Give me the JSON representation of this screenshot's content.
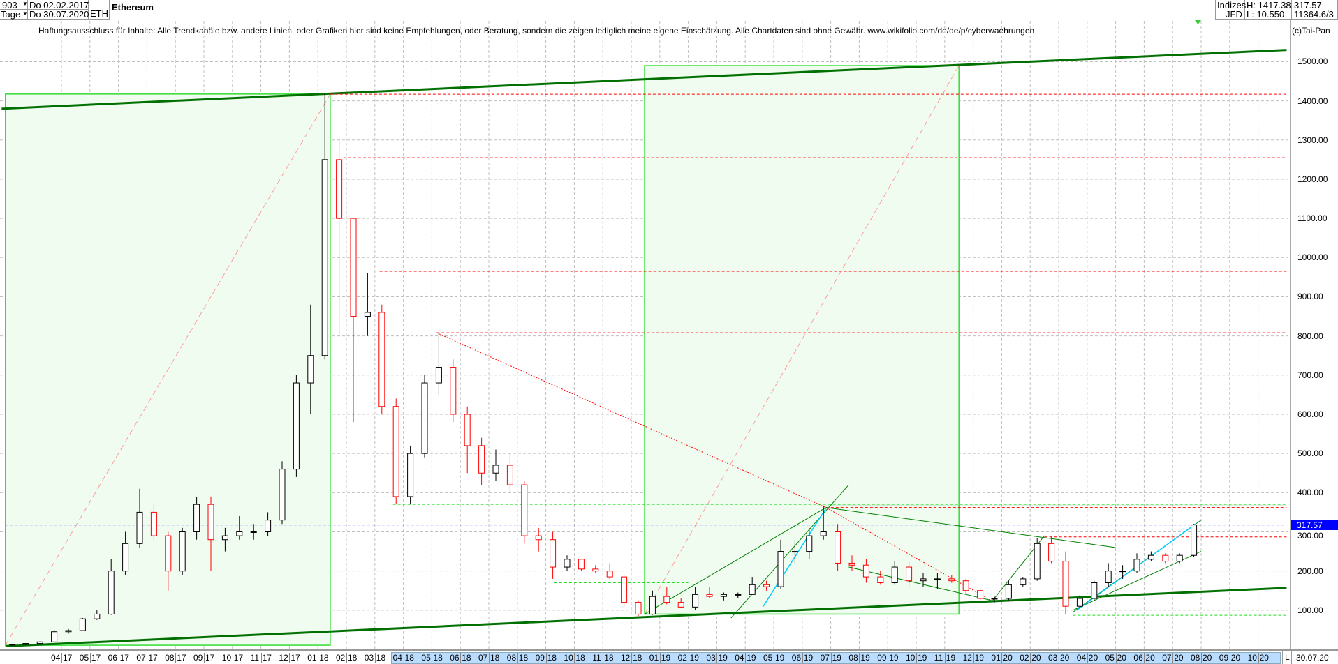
{
  "header": {
    "count_select": "903",
    "period_select": "Tage",
    "date_from": "Do 02.02.2017",
    "date_to": "Do 30.07.2020",
    "symbol": "ETH",
    "title": "Ethereum",
    "exchange_top": "Indizes",
    "exchange_bottom": "JFD",
    "high": "H: 1417.38",
    "low": "L: 10.550",
    "last": "317.57",
    "volume": "11364.6/3",
    "dropdown_icon": "triangle-down"
  },
  "disclaimer": "Haftungsausschluss für Inhalte: Alle Trendkanäle bzw. andere Linien, oder Grafiken hier sind keine Empfehlungen, oder Beratung, sondern die zeigen lediglich meine eigene Einschätzung. Alle Chartdaten sind ohne Gewähr.  www.wikifolio.com/de/de/p/cyberwaehrungen",
  "copyright": "(c)Tai-Pan",
  "footer": {
    "scale_mode": "L",
    "last_date": "30.07.20"
  },
  "colors": {
    "up": "#000000",
    "down": "#ff0000",
    "trend": "#008000",
    "zone_fill": "#f0fcf0",
    "zone_border": "#33dd33",
    "current_price": "#0000ff",
    "axis_highlight": "#b9dcff"
  },
  "chart_data": {
    "type": "candlestick",
    "ylim": [
      0,
      1560
    ],
    "yticks": [
      "100.00",
      "200.00",
      "300.00",
      "400.00",
      "500.00",
      "600.00",
      "700.00",
      "800.00",
      "900.00",
      "1000.00",
      "1100.00",
      "1200.00",
      "1300.00",
      "1400.00",
      "1500.00"
    ],
    "ytick_values": [
      100,
      200,
      300,
      400,
      500,
      600,
      700,
      800,
      900,
      1000,
      1100,
      1200,
      1300,
      1400,
      1500
    ],
    "xticks": [
      [
        "04",
        "17"
      ],
      [
        "05",
        "17"
      ],
      [
        "06",
        "17"
      ],
      [
        "07",
        "17"
      ],
      [
        "08",
        "17"
      ],
      [
        "09",
        "17"
      ],
      [
        "10",
        "17"
      ],
      [
        "11",
        "17"
      ],
      [
        "12",
        "17"
      ],
      [
        "01",
        "18"
      ],
      [
        "02",
        "18"
      ],
      [
        "03",
        "18"
      ],
      [
        "04",
        "18"
      ],
      [
        "05",
        "18"
      ],
      [
        "06",
        "18"
      ],
      [
        "07",
        "18"
      ],
      [
        "08",
        "18"
      ],
      [
        "09",
        "18"
      ],
      [
        "10",
        "18"
      ],
      [
        "11",
        "18"
      ],
      [
        "12",
        "18"
      ],
      [
        "01",
        "19"
      ],
      [
        "02",
        "19"
      ],
      [
        "03",
        "19"
      ],
      [
        "04",
        "19"
      ],
      [
        "05",
        "19"
      ],
      [
        "06",
        "19"
      ],
      [
        "07",
        "19"
      ],
      [
        "08",
        "19"
      ],
      [
        "09",
        "19"
      ],
      [
        "10",
        "19"
      ],
      [
        "11",
        "19"
      ],
      [
        "12",
        "19"
      ],
      [
        "01",
        "20"
      ],
      [
        "02",
        "20"
      ],
      [
        "03",
        "20"
      ],
      [
        "04",
        "20"
      ],
      [
        "05",
        "20"
      ],
      [
        "06",
        "20"
      ],
      [
        "07",
        "20"
      ],
      [
        "08",
        "20"
      ],
      [
        "09",
        "20"
      ],
      [
        "10",
        "20"
      ]
    ],
    "xtick_months": [
      "2017-04",
      "2017-05",
      "2017-06",
      "2017-07",
      "2017-08",
      "2017-09",
      "2017-10",
      "2017-11",
      "2017-12",
      "2018-01",
      "2018-02",
      "2018-03",
      "2018-04",
      "2018-05",
      "2018-06",
      "2018-07",
      "2018-08",
      "2018-09",
      "2018-10",
      "2018-11",
      "2018-12",
      "2019-01",
      "2019-02",
      "2019-03",
      "2019-04",
      "2019-05",
      "2019-06",
      "2019-07",
      "2019-08",
      "2019-09",
      "2019-10",
      "2019-11",
      "2019-12",
      "2020-01",
      "2020-02",
      "2020-03",
      "2020-04",
      "2020-05",
      "2020-06",
      "2020-07",
      "2020-08",
      "2020-09",
      "2020-10"
    ],
    "highlight_range": [
      "2018-04",
      "2020-10"
    ],
    "grid": true,
    "current_price": 317.57,
    "ohlc_fields": [
      "date",
      "open",
      "high",
      "low",
      "close"
    ],
    "candles": [
      [
        "2017-02-02",
        11,
        13,
        10.55,
        12.5
      ],
      [
        "2017-02-16",
        12.5,
        16,
        12,
        15
      ],
      [
        "2017-03-01",
        15,
        20,
        15,
        19
      ],
      [
        "2017-03-16",
        19,
        50,
        19,
        45
      ],
      [
        "2017-04-01",
        45,
        52,
        40,
        48
      ],
      [
        "2017-04-16",
        48,
        80,
        47,
        78
      ],
      [
        "2017-05-01",
        78,
        100,
        75,
        90
      ],
      [
        "2017-05-16",
        90,
        230,
        88,
        200
      ],
      [
        "2017-06-01",
        200,
        300,
        190,
        270
      ],
      [
        "2017-06-16",
        270,
        410,
        260,
        350
      ],
      [
        "2017-07-01",
        350,
        370,
        280,
        290
      ],
      [
        "2017-07-16",
        290,
        300,
        150,
        200
      ],
      [
        "2017-08-01",
        200,
        310,
        190,
        300
      ],
      [
        "2017-08-16",
        300,
        390,
        280,
        370
      ],
      [
        "2017-09-01",
        370,
        390,
        200,
        280
      ],
      [
        "2017-09-16",
        280,
        310,
        250,
        290
      ],
      [
        "2017-10-01",
        290,
        340,
        280,
        300
      ],
      [
        "2017-10-16",
        300,
        320,
        280,
        300
      ],
      [
        "2017-11-01",
        300,
        350,
        290,
        330
      ],
      [
        "2017-11-16",
        330,
        480,
        320,
        460
      ],
      [
        "2017-12-01",
        460,
        700,
        440,
        680
      ],
      [
        "2017-12-16",
        680,
        880,
        600,
        750
      ],
      [
        "2018-01-01",
        750,
        1417.38,
        740,
        1250
      ],
      [
        "2018-01-16",
        1250,
        1300,
        800,
        1100
      ],
      [
        "2018-02-01",
        1100,
        1100,
        580,
        850
      ],
      [
        "2018-02-16",
        850,
        960,
        800,
        860
      ],
      [
        "2018-03-01",
        860,
        880,
        600,
        620
      ],
      [
        "2018-03-16",
        620,
        640,
        370,
        390
      ],
      [
        "2018-04-01",
        390,
        520,
        370,
        500
      ],
      [
        "2018-04-16",
        500,
        700,
        490,
        680
      ],
      [
        "2018-05-01",
        680,
        810,
        650,
        720
      ],
      [
        "2018-05-16",
        720,
        740,
        580,
        600
      ],
      [
        "2018-06-01",
        600,
        620,
        450,
        520
      ],
      [
        "2018-06-16",
        520,
        540,
        420,
        450
      ],
      [
        "2018-07-01",
        450,
        510,
        430,
        470
      ],
      [
        "2018-07-16",
        470,
        500,
        400,
        420
      ],
      [
        "2018-08-01",
        420,
        430,
        270,
        290
      ],
      [
        "2018-08-16",
        290,
        310,
        250,
        280
      ],
      [
        "2018-09-01",
        280,
        300,
        180,
        210
      ],
      [
        "2018-09-16",
        210,
        240,
        200,
        230
      ],
      [
        "2018-10-01",
        230,
        230,
        200,
        205
      ],
      [
        "2018-10-16",
        205,
        215,
        195,
        200
      ],
      [
        "2018-11-01",
        200,
        220,
        180,
        185
      ],
      [
        "2018-11-16",
        185,
        190,
        110,
        120
      ],
      [
        "2018-12-01",
        120,
        125,
        85,
        90
      ],
      [
        "2018-12-16",
        90,
        150,
        88,
        135
      ],
      [
        "2019-01-01",
        135,
        160,
        115,
        120
      ],
      [
        "2019-01-16",
        120,
        130,
        105,
        108
      ],
      [
        "2019-02-01",
        108,
        160,
        100,
        140
      ],
      [
        "2019-02-16",
        140,
        160,
        130,
        135
      ],
      [
        "2019-03-01",
        135,
        145,
        125,
        140
      ],
      [
        "2019-03-16",
        140,
        145,
        130,
        140
      ],
      [
        "2019-04-01",
        140,
        185,
        140,
        165
      ],
      [
        "2019-04-16",
        165,
        175,
        150,
        160
      ],
      [
        "2019-05-01",
        160,
        280,
        155,
        250
      ],
      [
        "2019-05-16",
        250,
        280,
        220,
        250
      ],
      [
        "2019-06-01",
        250,
        310,
        230,
        290
      ],
      [
        "2019-06-16",
        290,
        365,
        280,
        300
      ],
      [
        "2019-07-01",
        300,
        320,
        200,
        220
      ],
      [
        "2019-07-16",
        220,
        240,
        200,
        215
      ],
      [
        "2019-08-01",
        215,
        230,
        170,
        185
      ],
      [
        "2019-08-16",
        185,
        200,
        165,
        170
      ],
      [
        "2019-09-01",
        170,
        225,
        165,
        210
      ],
      [
        "2019-09-16",
        210,
        225,
        160,
        175
      ],
      [
        "2019-10-01",
        175,
        195,
        160,
        180
      ],
      [
        "2019-10-16",
        180,
        195,
        155,
        180
      ],
      [
        "2019-11-01",
        180,
        190,
        170,
        175
      ],
      [
        "2019-11-16",
        175,
        180,
        140,
        150
      ],
      [
        "2019-12-01",
        150,
        155,
        125,
        130
      ],
      [
        "2019-12-16",
        130,
        135,
        120,
        130
      ],
      [
        "2020-01-01",
        130,
        175,
        125,
        165
      ],
      [
        "2020-01-16",
        165,
        185,
        160,
        180
      ],
      [
        "2020-02-01",
        180,
        285,
        175,
        270
      ],
      [
        "2020-02-16",
        270,
        290,
        220,
        225
      ],
      [
        "2020-03-01",
        225,
        250,
        90,
        110
      ],
      [
        "2020-03-16",
        110,
        140,
        100,
        130
      ],
      [
        "2020-04-01",
        130,
        175,
        125,
        170
      ],
      [
        "2020-04-16",
        170,
        220,
        160,
        200
      ],
      [
        "2020-05-01",
        200,
        215,
        180,
        200
      ],
      [
        "2020-05-16",
        200,
        245,
        195,
        230
      ],
      [
        "2020-06-01",
        230,
        250,
        225,
        240
      ],
      [
        "2020-06-16",
        240,
        245,
        220,
        225
      ],
      [
        "2020-07-01",
        225,
        245,
        220,
        240
      ],
      [
        "2020-07-16",
        240,
        320,
        235,
        317.57
      ]
    ],
    "zones": [
      {
        "from": "2017-02-02",
        "to": "2018-01-14",
        "low": 10.55,
        "high": 1417.38
      },
      {
        "from": "2018-12-15",
        "to": "2019-11-16",
        "low": 90,
        "high": 1490
      }
    ],
    "lines": [
      {
        "style": "trend-thick",
        "from": [
          "2017-01-28",
          1380
        ],
        "to": [
          "2020-10-31",
          1530
        ]
      },
      {
        "style": "trend-thick",
        "from": [
          "2017-02-02",
          8
        ],
        "to": [
          "2020-10-31",
          157
        ]
      },
      {
        "style": "red-dash",
        "from": [
          "2018-01-14",
          1417
        ],
        "to": [
          "2020-10-31",
          1417
        ]
      },
      {
        "style": "red-dash",
        "from": [
          "2018-01-28",
          1255
        ],
        "to": [
          "2020-10-31",
          1255
        ]
      },
      {
        "style": "red-dash",
        "from": [
          "2018-03-06",
          965
        ],
        "to": [
          "2020-10-31",
          965
        ]
      },
      {
        "style": "red-dash",
        "from": [
          "2018-05-06",
          808
        ],
        "to": [
          "2020-10-31",
          808
        ]
      },
      {
        "style": "red-dash",
        "from": [
          "2019-06-26",
          362
        ],
        "to": [
          "2020-10-31",
          362
        ]
      },
      {
        "style": "red-dash",
        "from": [
          "2020-02-16",
          287
        ],
        "to": [
          "2020-10-31",
          287
        ]
      },
      {
        "style": "red-dot",
        "from": [
          "2018-05-06",
          808
        ],
        "to": [
          "2019-06-26",
          362
        ]
      },
      {
        "style": "red-dot",
        "from": [
          "2019-06-26",
          362
        ],
        "to": [
          "2019-12-20",
          125
        ]
      },
      {
        "style": "pink-dash",
        "from": [
          "2017-02-02",
          10.55
        ],
        "to": [
          "2018-01-14",
          1417
        ]
      },
      {
        "style": "pink-dash",
        "from": [
          "2018-12-15",
          90
        ],
        "to": [
          "2019-11-16",
          1490
        ]
      },
      {
        "style": "green-dash",
        "from": [
          "2018-03-20",
          370
        ],
        "to": [
          "2020-10-31",
          370
        ]
      },
      {
        "style": "green-dash",
        "from": [
          "2018-09-10",
          170
        ],
        "to": [
          "2019-02-01",
          170
        ]
      },
      {
        "style": "green-dash",
        "from": [
          "2020-03-16",
          87
        ],
        "to": [
          "2020-10-31",
          87
        ]
      },
      {
        "style": "blue-dash",
        "from": [
          "2017-02-02",
          317.57
        ],
        "to": [
          "2020-10-31",
          317.57
        ]
      },
      {
        "style": "trend",
        "from": [
          "2018-12-15",
          90
        ],
        "to": [
          "2019-06-26",
          362
        ]
      },
      {
        "style": "trend",
        "from": [
          "2019-06-26",
          362
        ],
        "to": [
          "2020-05-01",
          260
        ]
      },
      {
        "style": "trend",
        "from": [
          "2019-07-20",
          210
        ],
        "to": [
          "2019-12-20",
          125
        ]
      },
      {
        "style": "trend",
        "from": [
          "2019-12-20",
          120
        ],
        "to": [
          "2020-02-16",
          290
        ]
      },
      {
        "style": "trend",
        "from": [
          "2020-03-16",
          95
        ],
        "to": [
          "2020-08-01",
          330
        ]
      },
      {
        "style": "trend",
        "from": [
          "2020-03-16",
          100
        ],
        "to": [
          "2020-08-01",
          250
        ]
      },
      {
        "style": "trend",
        "from": [
          "2019-06-26",
          366
        ],
        "to": [
          "2020-10-31",
          366
        ]
      },
      {
        "style": "trend",
        "from": [
          "2019-03-16",
          80
        ],
        "to": [
          "2019-07-20",
          420
        ]
      },
      {
        "style": "cyan",
        "from": [
          "2019-04-20",
          110
        ],
        "to": [
          "2019-06-26",
          360
        ]
      },
      {
        "style": "cyan",
        "from": [
          "2020-03-20",
          100
        ],
        "to": [
          "2020-07-25",
          320
        ]
      }
    ]
  }
}
